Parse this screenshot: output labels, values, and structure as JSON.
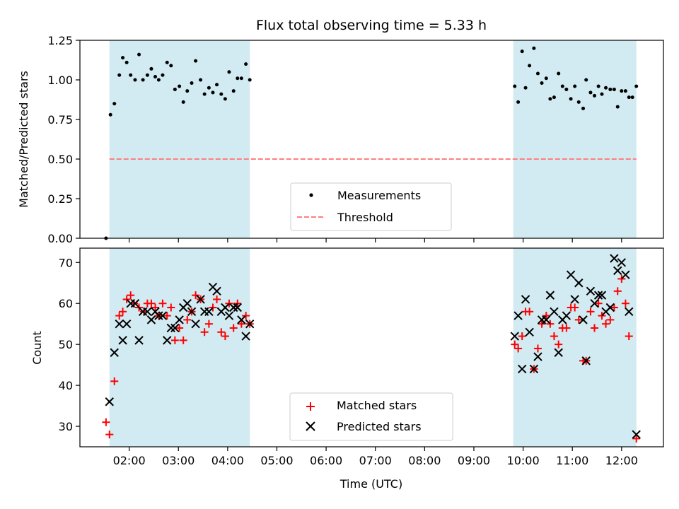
{
  "chart_data": [
    {
      "type": "scatter",
      "title": "Flux total observing time = 5.33 h",
      "xlabel": "",
      "ylabel": "Matched/Predicted stars",
      "ylim": [
        0,
        1.25
      ],
      "yticks": [
        0.0,
        0.25,
        0.5,
        0.75,
        1.0,
        1.25
      ],
      "ytick_labels": [
        "0.00",
        "0.25",
        "0.50",
        "0.75",
        "1.00",
        "1.25"
      ],
      "x_unit": "hours (UTC)",
      "xlim": [
        1.0,
        12.85
      ],
      "shaded_intervals": [
        [
          1.6,
          4.45
        ],
        [
          9.8,
          12.3
        ]
      ],
      "shade_color": "#add8e6",
      "threshold": {
        "value": 0.5,
        "label": "Threshold",
        "color": "#ff7f7f"
      },
      "series": [
        {
          "name": "Measurements",
          "marker": "dot",
          "color": "#000000",
          "points": [
            [
              1.53,
              0.0
            ],
            [
              1.62,
              0.78
            ],
            [
              1.7,
              0.85
            ],
            [
              1.8,
              1.03
            ],
            [
              1.87,
              1.14
            ],
            [
              1.95,
              1.11
            ],
            [
              2.03,
              1.03
            ],
            [
              2.12,
              1.0
            ],
            [
              2.2,
              1.16
            ],
            [
              2.28,
              1.0
            ],
            [
              2.37,
              1.03
            ],
            [
              2.45,
              1.07
            ],
            [
              2.53,
              1.02
            ],
            [
              2.6,
              1.0
            ],
            [
              2.68,
              1.03
            ],
            [
              2.77,
              1.11
            ],
            [
              2.85,
              1.09
            ],
            [
              2.93,
              0.94
            ],
            [
              3.02,
              0.96
            ],
            [
              3.1,
              0.86
            ],
            [
              3.18,
              0.93
            ],
            [
              3.27,
              0.98
            ],
            [
              3.35,
              1.12
            ],
            [
              3.45,
              1.0
            ],
            [
              3.53,
              0.91
            ],
            [
              3.62,
              0.95
            ],
            [
              3.7,
              0.92
            ],
            [
              3.78,
              0.97
            ],
            [
              3.87,
              0.91
            ],
            [
              3.95,
              0.88
            ],
            [
              4.03,
              1.05
            ],
            [
              4.12,
              0.93
            ],
            [
              4.2,
              1.01
            ],
            [
              4.28,
              1.01
            ],
            [
              4.37,
              1.1
            ],
            [
              4.45,
              1.0
            ],
            [
              9.83,
              0.96
            ],
            [
              9.9,
              0.86
            ],
            [
              9.98,
              1.18
            ],
            [
              10.05,
              0.95
            ],
            [
              10.13,
              1.09
            ],
            [
              10.22,
              1.2
            ],
            [
              10.3,
              1.04
            ],
            [
              10.38,
              0.98
            ],
            [
              10.47,
              1.01
            ],
            [
              10.55,
              0.88
            ],
            [
              10.63,
              0.89
            ],
            [
              10.72,
              1.04
            ],
            [
              10.8,
              0.96
            ],
            [
              10.88,
              0.94
            ],
            [
              10.97,
              0.88
            ],
            [
              11.05,
              0.96
            ],
            [
              11.13,
              0.86
            ],
            [
              11.22,
              0.82
            ],
            [
              11.28,
              1.0
            ],
            [
              11.37,
              0.92
            ],
            [
              11.45,
              0.9
            ],
            [
              11.53,
              0.96
            ],
            [
              11.6,
              0.91
            ],
            [
              11.68,
              0.95
            ],
            [
              11.77,
              0.94
            ],
            [
              11.85,
              0.94
            ],
            [
              11.92,
              0.83
            ],
            [
              12.0,
              0.93
            ],
            [
              12.08,
              0.93
            ],
            [
              12.15,
              0.89
            ],
            [
              12.22,
              0.89
            ],
            [
              12.3,
              0.96
            ]
          ]
        }
      ],
      "legend": {
        "position": "lower-center",
        "entries": [
          "Measurements",
          "Threshold"
        ]
      }
    },
    {
      "type": "scatter",
      "title": "",
      "xlabel": "Time (UTC)",
      "ylabel": "Count",
      "ylim": [
        25,
        73.5
      ],
      "yticks": [
        30,
        40,
        50,
        60,
        70
      ],
      "ytick_labels": [
        "30",
        "40",
        "50",
        "60",
        "70"
      ],
      "x_unit": "hours (UTC)",
      "xlim": [
        1.0,
        12.85
      ],
      "xticks": [
        2,
        3,
        4,
        5,
        6,
        7,
        8,
        9,
        10,
        11,
        12
      ],
      "xtick_labels": [
        "02:00",
        "03:00",
        "04:00",
        "05:00",
        "06:00",
        "07:00",
        "08:00",
        "09:00",
        "10:00",
        "11:00",
        "12:00"
      ],
      "shaded_intervals": [
        [
          1.6,
          4.45
        ],
        [
          9.8,
          12.3
        ]
      ],
      "shade_color": "#add8e6",
      "series": [
        {
          "name": "Matched stars",
          "marker": "plus",
          "color": "#ff0000",
          "points": [
            [
              1.53,
              31
            ],
            [
              1.6,
              28
            ],
            [
              1.7,
              41
            ],
            [
              1.8,
              57
            ],
            [
              1.87,
              58
            ],
            [
              1.95,
              61
            ],
            [
              2.03,
              62
            ],
            [
              2.1,
              60
            ],
            [
              2.2,
              59
            ],
            [
              2.3,
              58
            ],
            [
              2.37,
              60
            ],
            [
              2.45,
              60
            ],
            [
              2.53,
              59
            ],
            [
              2.6,
              57
            ],
            [
              2.68,
              60
            ],
            [
              2.77,
              57
            ],
            [
              2.85,
              59
            ],
            [
              2.93,
              51
            ],
            [
              3.02,
              54
            ],
            [
              3.1,
              51
            ],
            [
              3.18,
              56
            ],
            [
              3.27,
              58
            ],
            [
              3.35,
              62
            ],
            [
              3.45,
              61
            ],
            [
              3.53,
              53
            ],
            [
              3.62,
              55
            ],
            [
              3.7,
              59
            ],
            [
              3.78,
              61
            ],
            [
              3.87,
              53
            ],
            [
              3.95,
              52
            ],
            [
              4.03,
              60
            ],
            [
              4.12,
              54
            ],
            [
              4.2,
              60
            ],
            [
              4.28,
              55
            ],
            [
              4.37,
              57
            ],
            [
              4.45,
              55
            ],
            [
              9.83,
              50
            ],
            [
              9.9,
              49
            ],
            [
              9.98,
              52
            ],
            [
              10.05,
              58
            ],
            [
              10.13,
              58
            ],
            [
              10.22,
              44
            ],
            [
              10.3,
              49
            ],
            [
              10.38,
              55
            ],
            [
              10.47,
              57
            ],
            [
              10.55,
              55
            ],
            [
              10.63,
              52
            ],
            [
              10.72,
              50
            ],
            [
              10.8,
              54
            ],
            [
              10.88,
              54
            ],
            [
              10.97,
              59
            ],
            [
              11.05,
              59
            ],
            [
              11.13,
              56
            ],
            [
              11.22,
              46
            ],
            [
              11.28,
              46
            ],
            [
              11.37,
              58
            ],
            [
              11.45,
              54
            ],
            [
              11.53,
              60
            ],
            [
              11.6,
              57
            ],
            [
              11.68,
              55
            ],
            [
              11.77,
              56
            ],
            [
              11.85,
              59
            ],
            [
              11.92,
              63
            ],
            [
              12.0,
              66
            ],
            [
              12.08,
              60
            ],
            [
              12.15,
              52
            ],
            [
              12.3,
              27
            ]
          ]
        },
        {
          "name": "Predicted stars",
          "marker": "x",
          "color": "#000000",
          "points": [
            [
              1.6,
              36
            ],
            [
              1.7,
              48
            ],
            [
              1.8,
              55
            ],
            [
              1.87,
              51
            ],
            [
              1.95,
              55
            ],
            [
              2.03,
              60
            ],
            [
              2.12,
              60
            ],
            [
              2.2,
              51
            ],
            [
              2.28,
              58
            ],
            [
              2.37,
              58
            ],
            [
              2.45,
              56
            ],
            [
              2.53,
              58
            ],
            [
              2.6,
              57
            ],
            [
              2.68,
              57
            ],
            [
              2.77,
              51
            ],
            [
              2.85,
              54
            ],
            [
              2.93,
              54
            ],
            [
              3.02,
              56
            ],
            [
              3.1,
              59
            ],
            [
              3.18,
              60
            ],
            [
              3.27,
              58
            ],
            [
              3.35,
              55
            ],
            [
              3.45,
              61
            ],
            [
              3.53,
              58
            ],
            [
              3.62,
              58
            ],
            [
              3.7,
              64
            ],
            [
              3.78,
              63
            ],
            [
              3.87,
              58
            ],
            [
              3.95,
              59
            ],
            [
              4.03,
              57
            ],
            [
              4.12,
              59
            ],
            [
              4.2,
              59
            ],
            [
              4.28,
              56
            ],
            [
              4.37,
              52
            ],
            [
              4.45,
              55
            ],
            [
              9.83,
              52
            ],
            [
              9.9,
              57
            ],
            [
              9.98,
              44
            ],
            [
              10.05,
              61
            ],
            [
              10.13,
              53
            ],
            [
              10.22,
              44
            ],
            [
              10.3,
              47
            ],
            [
              10.38,
              56
            ],
            [
              10.47,
              56
            ],
            [
              10.55,
              62
            ],
            [
              10.63,
              58
            ],
            [
              10.72,
              48
            ],
            [
              10.8,
              56
            ],
            [
              10.88,
              57
            ],
            [
              10.97,
              67
            ],
            [
              11.05,
              61
            ],
            [
              11.13,
              65
            ],
            [
              11.22,
              56
            ],
            [
              11.28,
              46
            ],
            [
              11.37,
              63
            ],
            [
              11.45,
              60
            ],
            [
              11.53,
              62
            ],
            [
              11.6,
              62
            ],
            [
              11.68,
              58
            ],
            [
              11.77,
              59
            ],
            [
              11.85,
              71
            ],
            [
              11.92,
              68
            ],
            [
              12.0,
              70
            ],
            [
              12.08,
              67
            ],
            [
              12.15,
              58
            ],
            [
              12.3,
              28
            ]
          ]
        }
      ],
      "legend": {
        "position": "lower-center",
        "entries": [
          "Matched stars",
          "Predicted stars"
        ]
      }
    }
  ]
}
